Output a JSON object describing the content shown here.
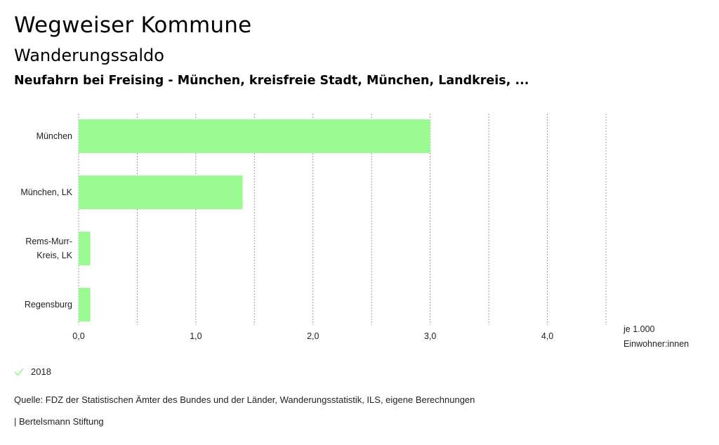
{
  "header": {
    "title": "Wegweiser Kommune",
    "subtitle": "Wanderungssaldo",
    "region": "Neufahrn bei Freising - München, kreisfreie Stadt, München, Landkreis, ..."
  },
  "colors": {
    "bar": "#9cfa92",
    "grid": "#999999",
    "check": "#9cfa92"
  },
  "chart_data": {
    "type": "bar",
    "orientation": "horizontal",
    "categories": [
      "München",
      "München, LK",
      "Rems-Murr-Kreis, LK",
      "Regensburg"
    ],
    "category_lines": [
      [
        "München"
      ],
      [
        "München, LK"
      ],
      [
        "Rems-Murr-",
        "Kreis, LK"
      ],
      [
        "Regensburg"
      ]
    ],
    "series": [
      {
        "name": "2018",
        "values": [
          3.0,
          1.4,
          0.1,
          0.1
        ]
      }
    ],
    "xlim": [
      0,
      4.5
    ],
    "xticks": [
      0,
      1,
      2,
      3,
      4
    ],
    "xtick_labels": [
      "0,0",
      "1,0",
      "2,0",
      "3,0",
      "4,0"
    ],
    "grid_step": 0.5,
    "grid": true,
    "legend_position": "bottom-left"
  },
  "unit": {
    "line1": "je 1.000",
    "line2": "Einwohner:innen"
  },
  "legend": {
    "label": "2018",
    "icon": "check-icon"
  },
  "footer": {
    "source": "Quelle: FDZ der Statistischen Ämter des Bundes und der Länder, Wanderungsstatistik, ILS, eigene Berechnungen",
    "brand": "| Bertelsmann Stiftung"
  }
}
